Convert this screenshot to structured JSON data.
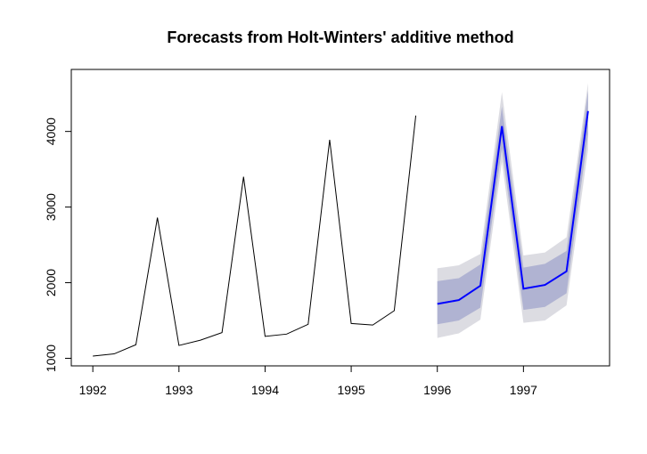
{
  "chart_data": {
    "type": "line",
    "title": "Forecasts from Holt-Winters' additive method",
    "xlabel": "",
    "ylabel": "",
    "xlim": [
      1991.75,
      1998.0
    ],
    "ylim": [
      900,
      4820
    ],
    "x_ticks": [
      1992,
      1993,
      1994,
      1995,
      1996,
      1997
    ],
    "y_ticks": [
      1000,
      2000,
      3000,
      4000
    ],
    "grid": false,
    "observed": {
      "x": [
        1992.0,
        1992.25,
        1992.5,
        1992.75,
        1993.0,
        1993.25,
        1993.5,
        1993.75,
        1994.0,
        1994.25,
        1994.5,
        1994.75,
        1995.0,
        1995.25,
        1995.5,
        1995.75
      ],
      "values": [
        1030,
        1060,
        1180,
        2860,
        1170,
        1240,
        1340,
        3400,
        1290,
        1320,
        1450,
        3890,
        1460,
        1440,
        1630,
        4210
      ]
    },
    "forecast": {
      "x": [
        1996.0,
        1996.25,
        1996.5,
        1996.75,
        1997.0,
        1997.25,
        1997.5,
        1997.75
      ],
      "mean": [
        1720,
        1770,
        1960,
        4070,
        1920,
        1970,
        2150,
        4270
      ],
      "lo80": [
        1450,
        1500,
        1670,
        3780,
        1640,
        1680,
        1860,
        3960
      ],
      "hi80": [
        2020,
        2060,
        2240,
        4330,
        2200,
        2250,
        2420,
        4540
      ],
      "lo95": [
        1270,
        1330,
        1510,
        3600,
        1470,
        1500,
        1700,
        3760
      ],
      "hi95": [
        2190,
        2230,
        2380,
        4520,
        2360,
        2400,
        2600,
        4640
      ]
    },
    "colors": {
      "observed": "#000000",
      "mean": "#0000ff",
      "band80": "#b0b3d2",
      "band95": "#dcdce2",
      "frame": "#000000"
    }
  }
}
